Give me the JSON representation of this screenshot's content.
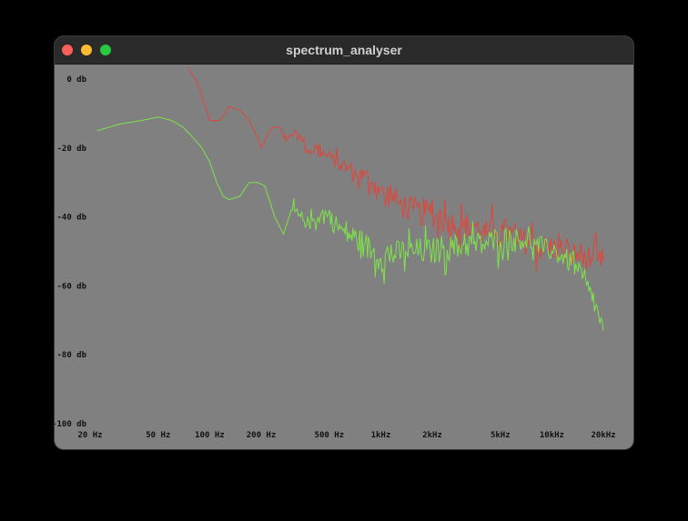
{
  "window": {
    "title": "spectrum_analyser",
    "controls": [
      "close",
      "minimize",
      "maximize"
    ]
  },
  "chart_data": {
    "type": "line",
    "title": "",
    "xlabel": "",
    "ylabel": "",
    "x_scale": "log",
    "xlim": [
      20,
      20000
    ],
    "ylim": [
      -100,
      0
    ],
    "grid": false,
    "legend": false,
    "background": "#808080",
    "x_ticks": [
      {
        "value": 20,
        "label": "20 Hz"
      },
      {
        "value": 50,
        "label": "50 Hz"
      },
      {
        "value": 100,
        "label": "100 Hz"
      },
      {
        "value": 200,
        "label": "200 Hz"
      },
      {
        "value": 500,
        "label": "500 Hz"
      },
      {
        "value": 1000,
        "label": "1kHz"
      },
      {
        "value": 2000,
        "label": "2kHz"
      },
      {
        "value": 5000,
        "label": "5kHz"
      },
      {
        "value": 10000,
        "label": "10kHz"
      },
      {
        "value": 20000,
        "label": "20kHz"
      }
    ],
    "y_ticks": [
      {
        "value": 0,
        "label": "0 db"
      },
      {
        "value": -20,
        "label": "-20 db"
      },
      {
        "value": -40,
        "label": "-40 db"
      },
      {
        "value": -60,
        "label": "-60 db"
      },
      {
        "value": -80,
        "label": "-80 db"
      },
      {
        "value": -100,
        "label": "-100 db"
      }
    ],
    "series": [
      {
        "color": "#e0453a",
        "x": [
          75,
          85,
          100,
          115,
          130,
          150,
          170,
          190,
          200,
          230,
          260,
          280,
          300,
          320,
          350,
          380,
          420,
          470,
          520,
          580,
          650,
          720,
          800,
          880,
          960,
          1050,
          1150,
          1250,
          1400,
          1550,
          1700,
          1900,
          2100,
          2400,
          2700,
          3000,
          3400,
          3800,
          4200,
          4700,
          5200,
          5800,
          6400,
          7200,
          8000,
          9000,
          10000,
          11500,
          13000,
          15000,
          17000,
          18500,
          20000
        ],
        "y": [
          3,
          -1,
          -12,
          -12,
          -8,
          -9,
          -12,
          -17,
          -20,
          -14,
          -14,
          -18,
          -16,
          -15,
          -18,
          -21,
          -20,
          -22,
          -23,
          -25,
          -26,
          -28,
          -28,
          -30,
          -31,
          -34,
          -33,
          -36,
          -37,
          -38,
          -39,
          -38,
          -40,
          -41,
          -42,
          -43,
          -42,
          -44,
          -45,
          -44,
          -44,
          -45,
          -47,
          -47,
          -48,
          -49,
          -49,
          -50,
          -51,
          -51,
          -52,
          -53,
          -53
        ],
        "noise": [
          0,
          0,
          0,
          0,
          0,
          0,
          0,
          0,
          0,
          0,
          1,
          1,
          1,
          1,
          2,
          2,
          2,
          2,
          2,
          3,
          3,
          3,
          3,
          3,
          3,
          4,
          4,
          4,
          4,
          4,
          4,
          4,
          4,
          4,
          4,
          4,
          4,
          4,
          4,
          4,
          4,
          4,
          4,
          4,
          4,
          4,
          4,
          4,
          4,
          4,
          4,
          4,
          4
        ]
      },
      {
        "color": "#7de34a",
        "x": [
          22,
          30,
          40,
          50,
          60,
          70,
          80,
          90,
          100,
          110,
          120,
          130,
          150,
          170,
          190,
          210,
          240,
          270,
          300,
          340,
          380,
          430,
          480,
          540,
          600,
          700,
          800,
          900,
          1000,
          1200,
          1400,
          1600,
          1800,
          2000,
          2300,
          2600,
          3000,
          3500,
          4000,
          4500,
          5000,
          6000,
          7000,
          8000,
          9000,
          10000,
          12000,
          14000,
          16000,
          18000,
          20000
        ],
        "y": [
          -15,
          -13,
          -12,
          -11,
          -12,
          -14,
          -17,
          -20,
          -24,
          -30,
          -34,
          -35,
          -34,
          -30,
          -30,
          -31,
          -40,
          -45,
          -38,
          -40,
          -42,
          -40,
          -39,
          -42,
          -44,
          -46,
          -48,
          -50,
          -52,
          -51,
          -50,
          -50,
          -50,
          -50,
          -49,
          -49,
          -48,
          -48,
          -48,
          -47,
          -47,
          -46,
          -47,
          -48,
          -49,
          -50,
          -52,
          -55,
          -60,
          -66,
          -73
        ],
        "noise": [
          0,
          0,
          0,
          0,
          0,
          0,
          0,
          0,
          0,
          0,
          0,
          0,
          0,
          0,
          0,
          0,
          0,
          0,
          2,
          2,
          2,
          3,
          3,
          3,
          4,
          4,
          4,
          4,
          4,
          4,
          4,
          4,
          4,
          4,
          4,
          4,
          4,
          4,
          4,
          4,
          4,
          3,
          3,
          3,
          3,
          3,
          3,
          3,
          3,
          3,
          3
        ]
      }
    ]
  }
}
